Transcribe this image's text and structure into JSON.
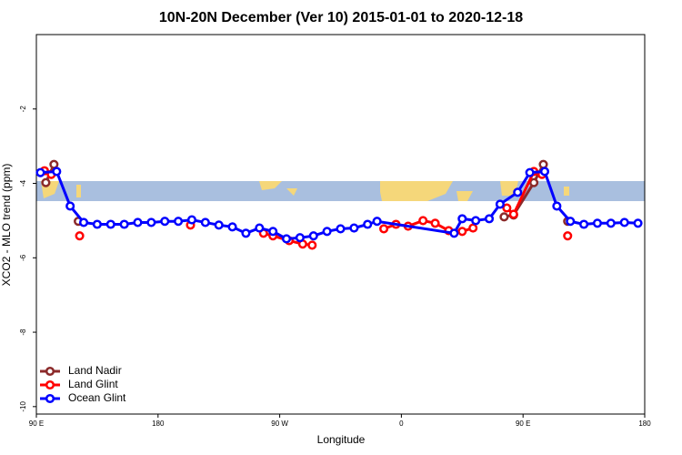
{
  "chart_data": {
    "type": "line",
    "title": "10N-20N December (Ver 10)   2015-01-01 to 2020-12-18",
    "x_label": "Longitude",
    "y_label": "XCO2 - MLO trend (ppm)",
    "xlim": [
      90,
      540
    ],
    "ylim": [
      -10.2,
      0
    ],
    "xticks": [
      {
        "value": 90,
        "label": "90 E"
      },
      180,
      {
        "value": 270,
        "label": "90 W"
      },
      {
        "value": 360,
        "label": "0"
      },
      {
        "value": 450,
        "label": "90 E"
      },
      {
        "value": 540,
        "label": "180"
      }
    ],
    "yticks": [
      -10,
      -8,
      -6,
      -4,
      -2
    ],
    "legend": "bottom-left",
    "series": [
      {
        "name": "Land Nadir",
        "color": "#8b2a2a",
        "x": [
          97,
          103,
          null,
          121,
          null,
          436,
          443,
          458,
          465,
          null,
          483
        ],
        "values": [
          -3.98,
          -3.49,
          null,
          -5.02,
          null,
          -4.9,
          -4.85,
          -3.98,
          -3.49,
          null,
          -5.02
        ]
      },
      {
        "name": "Land Glint",
        "color": "#ff0000",
        "x": [
          96,
          101,
          null,
          122,
          null,
          204,
          null,
          258,
          265,
          277,
          287,
          294,
          null,
          347,
          356,
          365,
          376,
          385,
          395,
          405,
          413,
          null,
          438,
          443,
          458,
          464,
          null,
          483
        ],
        "values": [
          -3.66,
          -3.76,
          null,
          -5.41,
          null,
          -5.12,
          null,
          -5.34,
          -5.41,
          -5.54,
          -5.63,
          -5.66,
          null,
          -5.22,
          -5.1,
          -5.15,
          -5.0,
          -5.07,
          -5.27,
          -5.29,
          -5.2,
          null,
          -4.66,
          -4.83,
          -3.68,
          -3.76,
          null,
          -5.41
        ]
      },
      {
        "name": "Ocean Glint",
        "color": "#0000ff",
        "x": [
          93,
          105,
          115,
          125,
          135,
          145,
          155,
          165,
          175,
          185,
          195,
          205,
          215,
          225,
          235,
          245,
          255,
          265,
          275,
          285,
          295,
          305,
          315,
          325,
          335,
          342,
          399,
          405,
          415,
          425,
          433,
          446,
          455,
          466,
          475,
          485,
          495,
          505,
          515,
          525,
          535
        ],
        "values": [
          -3.71,
          -3.68,
          -4.61,
          -5.05,
          -5.1,
          -5.1,
          -5.1,
          -5.05,
          -5.05,
          -5.02,
          -5.02,
          -4.98,
          -5.05,
          -5.12,
          -5.17,
          -5.34,
          -5.2,
          -5.29,
          -5.49,
          -5.46,
          -5.41,
          -5.29,
          -5.22,
          -5.2,
          -5.1,
          -5.02,
          -5.34,
          -4.95,
          -5.0,
          -4.95,
          -4.56,
          -4.24,
          -3.71,
          -3.68,
          -4.61,
          -5.02,
          -5.1,
          -5.07,
          -5.07,
          -5.05,
          -5.07
        ]
      }
    ]
  }
}
